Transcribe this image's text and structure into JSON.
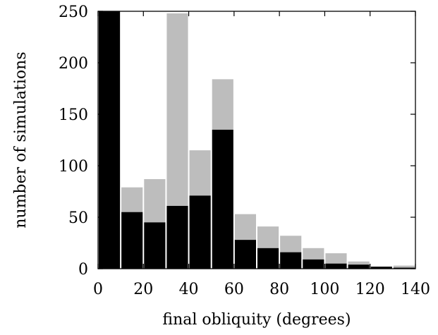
{
  "chart_data": {
    "type": "bar",
    "stacked": true,
    "xlabel": "final obliquity (degrees)",
    "ylabel": "number of simulations",
    "xlim": [
      0,
      140
    ],
    "ylim": [
      0,
      250
    ],
    "xticks": [
      0,
      20,
      40,
      60,
      80,
      100,
      120,
      140
    ],
    "yticks": [
      0,
      50,
      100,
      150,
      200,
      250
    ],
    "bin_width": 10,
    "bins": [
      0,
      10,
      20,
      30,
      40,
      50,
      60,
      70,
      80,
      90,
      100,
      110,
      120,
      130
    ],
    "series": [
      {
        "color": "#000000",
        "values": [
          250,
          55,
          45,
          61,
          71,
          135,
          28,
          20,
          16,
          9,
          5,
          4,
          2,
          1
        ]
      },
      {
        "color": "#bdbdbd",
        "totals": [
          250,
          79,
          87,
          248,
          115,
          184,
          53,
          41,
          32,
          20,
          15,
          7,
          2,
          3
        ]
      }
    ],
    "grid": false,
    "legend": "none"
  }
}
